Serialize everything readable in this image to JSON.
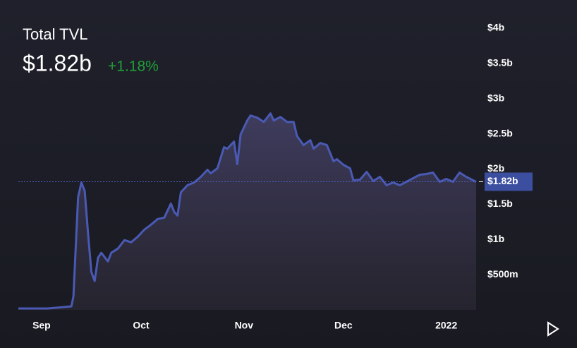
{
  "chart_data": {
    "type": "area",
    "title": "Total TVL",
    "change": "+1.18%",
    "current": 1.82,
    "current_label": "$1.82b",
    "color": "#4a5ab4",
    "x": [
      0,
      9,
      16,
      16.6,
      18,
      19,
      20,
      21,
      22,
      23,
      24,
      25,
      27,
      28,
      30,
      32,
      34,
      36,
      38,
      40,
      42,
      44,
      46,
      47,
      48,
      49,
      51,
      53,
      55,
      57,
      58,
      60,
      62,
      63,
      65,
      66,
      67,
      69,
      70,
      72,
      74,
      76,
      77,
      79,
      81,
      83,
      84,
      86,
      88,
      89,
      91,
      93,
      95,
      96,
      98,
      100,
      101,
      103,
      105,
      107,
      109,
      111,
      113,
      115,
      117,
      119,
      121,
      123,
      125,
      127,
      129,
      131,
      133,
      135,
      138
    ],
    "values": [
      0.02,
      0.02,
      0.05,
      0.19,
      1.6,
      1.81,
      1.69,
      1.09,
      0.54,
      0.41,
      0.74,
      0.81,
      0.69,
      0.81,
      0.87,
      0.99,
      0.96,
      1.04,
      1.14,
      1.21,
      1.29,
      1.31,
      1.51,
      1.39,
      1.34,
      1.67,
      1.77,
      1.81,
      1.89,
      1.99,
      1.94,
      2.01,
      2.31,
      2.29,
      2.39,
      2.07,
      2.49,
      2.69,
      2.76,
      2.73,
      2.67,
      2.79,
      2.69,
      2.74,
      2.67,
      2.67,
      2.47,
      2.34,
      2.41,
      2.29,
      2.37,
      2.34,
      2.11,
      2.14,
      2.06,
      2.01,
      1.84,
      1.85,
      1.96,
      1.83,
      1.89,
      1.77,
      1.81,
      1.77,
      1.82,
      1.87,
      1.92,
      1.93,
      1.95,
      1.82,
      1.86,
      1.82,
      1.95,
      1.89,
      1.82
    ],
    "xlim": [
      0,
      138
    ],
    "xticks": [
      {
        "value": 7,
        "label": "Sep"
      },
      {
        "value": 37,
        "label": "Oct"
      },
      {
        "value": 68,
        "label": "Nov"
      },
      {
        "value": 98,
        "label": "Dec"
      },
      {
        "value": 129,
        "label": "2022"
      }
    ],
    "ylim": [
      0,
      4
    ],
    "yticks": [
      {
        "value": 0.5,
        "label": "$500m"
      },
      {
        "value": 1,
        "label": "$1b"
      },
      {
        "value": 1.5,
        "label": "$1.5b"
      },
      {
        "value": 2,
        "label": "$2b"
      },
      {
        "value": 2.5,
        "label": "$2.5b"
      },
      {
        "value": 3,
        "label": "$3b"
      },
      {
        "value": 3.5,
        "label": "$3.5b"
      },
      {
        "value": 4,
        "label": "$4b"
      }
    ]
  }
}
